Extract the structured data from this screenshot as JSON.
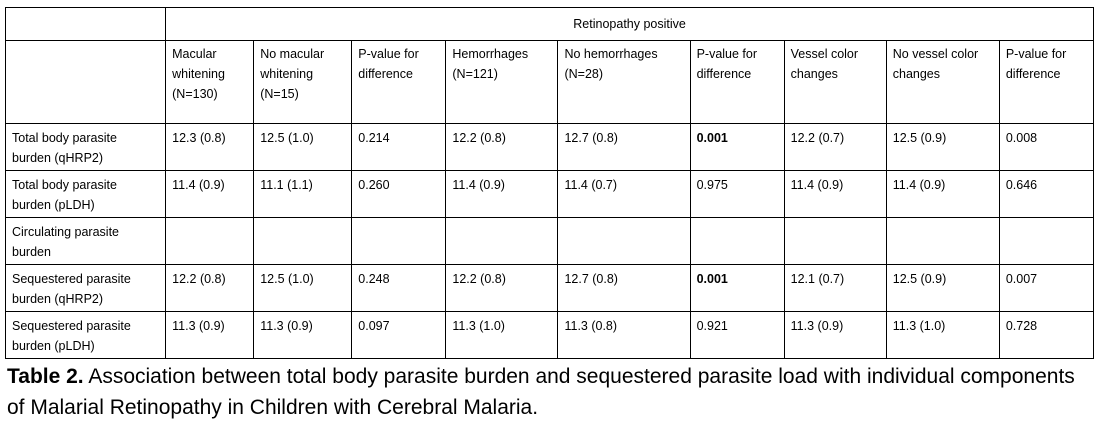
{
  "table": {
    "group_header": "Retinopathy positive",
    "columns": [
      "Macular whitening (N=130)",
      "No macular whitening (N=15)",
      "P-value for difference",
      "Hemorrhages (N=121)",
      "No hemorrhages (N=28)",
      "P-value for difference",
      "Vessel color changes",
      "No vessel color changes",
      "P-value for difference"
    ],
    "rows": [
      {
        "label": "Total body parasite burden (qHRP2)",
        "cells": [
          "12.3 (0.8)",
          "12.5 (1.0)",
          "0.214",
          "12.2 (0.8)",
          "12.7 (0.8)",
          "0.001",
          "12.2 (0.7)",
          "12.5 (0.9)",
          "0.008"
        ]
      },
      {
        "label": "Total body parasite burden (pLDH)",
        "cells": [
          "11.4 (0.9)",
          "11.1 (1.1)",
          "0.260",
          "11.4 (0.9)",
          "11.4 (0.7)",
          "0.975",
          "11.4 (0.9)",
          "11.4 (0.9)",
          "0.646"
        ]
      },
      {
        "label": "Circulating parasite burden",
        "cells": [
          "",
          "",
          "",
          "",
          "",
          "",
          "",
          "",
          ""
        ]
      },
      {
        "label": "Sequestered parasite burden (qHRP2)",
        "cells": [
          "12.2 (0.8)",
          "12.5 (1.0)",
          "0.248",
          "12.2 (0.8)",
          "12.7 (0.8)",
          "0.001",
          "12.1 (0.7)",
          "12.5 (0.9)",
          "0.007"
        ]
      },
      {
        "label": "Sequestered parasite burden (pLDH)",
        "cells": [
          "11.3 (0.9)",
          "11.3 (0.9)",
          "0.097",
          "11.3 (1.0)",
          "11.3 (0.8)",
          "0.921",
          "11.3 (0.9)",
          "11.3 (1.0)",
          "0.728"
        ]
      }
    ]
  },
  "caption": {
    "lead": "Table 2.",
    "text": " Association between total body parasite burden and sequestered parasite load with individual components of Malarial Retinopathy in Children with Cerebral Malaria."
  }
}
